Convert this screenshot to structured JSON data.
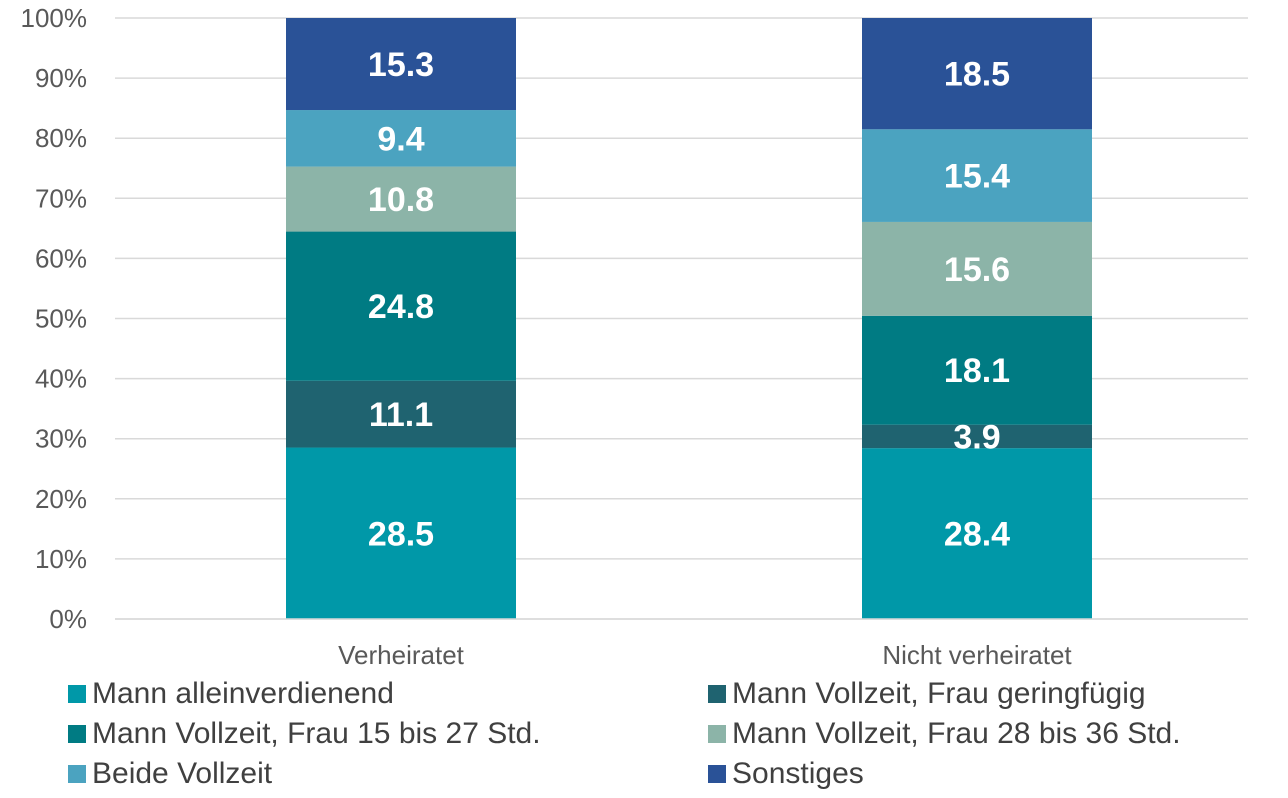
{
  "chart_data": {
    "type": "bar",
    "stacked": true,
    "percent_stacked": true,
    "categories": [
      "Verheiratet",
      "Nicht verheiratet"
    ],
    "series": [
      {
        "name": "Mann alleinverdienend",
        "values": [
          28.5,
          28.4
        ],
        "color": "#0098A8"
      },
      {
        "name": "Mann Vollzeit, Frau geringfügig",
        "values": [
          11.1,
          3.9
        ],
        "color": "#1F6370"
      },
      {
        "name": "Mann Vollzeit, Frau 15 bis 27 Std.",
        "values": [
          24.8,
          18.1
        ],
        "color": "#007B83"
      },
      {
        "name": "Mann Vollzeit, Frau 28 bis 36 Std.",
        "values": [
          10.8,
          15.6
        ],
        "color": "#8CB4A8"
      },
      {
        "name": "Beide Vollzeit",
        "values": [
          9.4,
          15.4
        ],
        "color": "#4BA3C0"
      },
      {
        "name": "Sonstiges",
        "values": [
          15.3,
          18.5
        ],
        "color": "#2A5297"
      }
    ],
    "y_ticks": [
      "0%",
      "10%",
      "20%",
      "30%",
      "40%",
      "50%",
      "60%",
      "70%",
      "80%",
      "90%",
      "100%"
    ],
    "ylim": [
      0,
      100
    ],
    "grid": true,
    "data_labels": true,
    "legend_position": "bottom",
    "title": "",
    "xlabel": "",
    "ylabel": ""
  },
  "colors": {
    "gridline": "#D9D9D9",
    "axis_text": "#595959",
    "legend_text": "#404040",
    "data_label": "#FFFFFF"
  }
}
